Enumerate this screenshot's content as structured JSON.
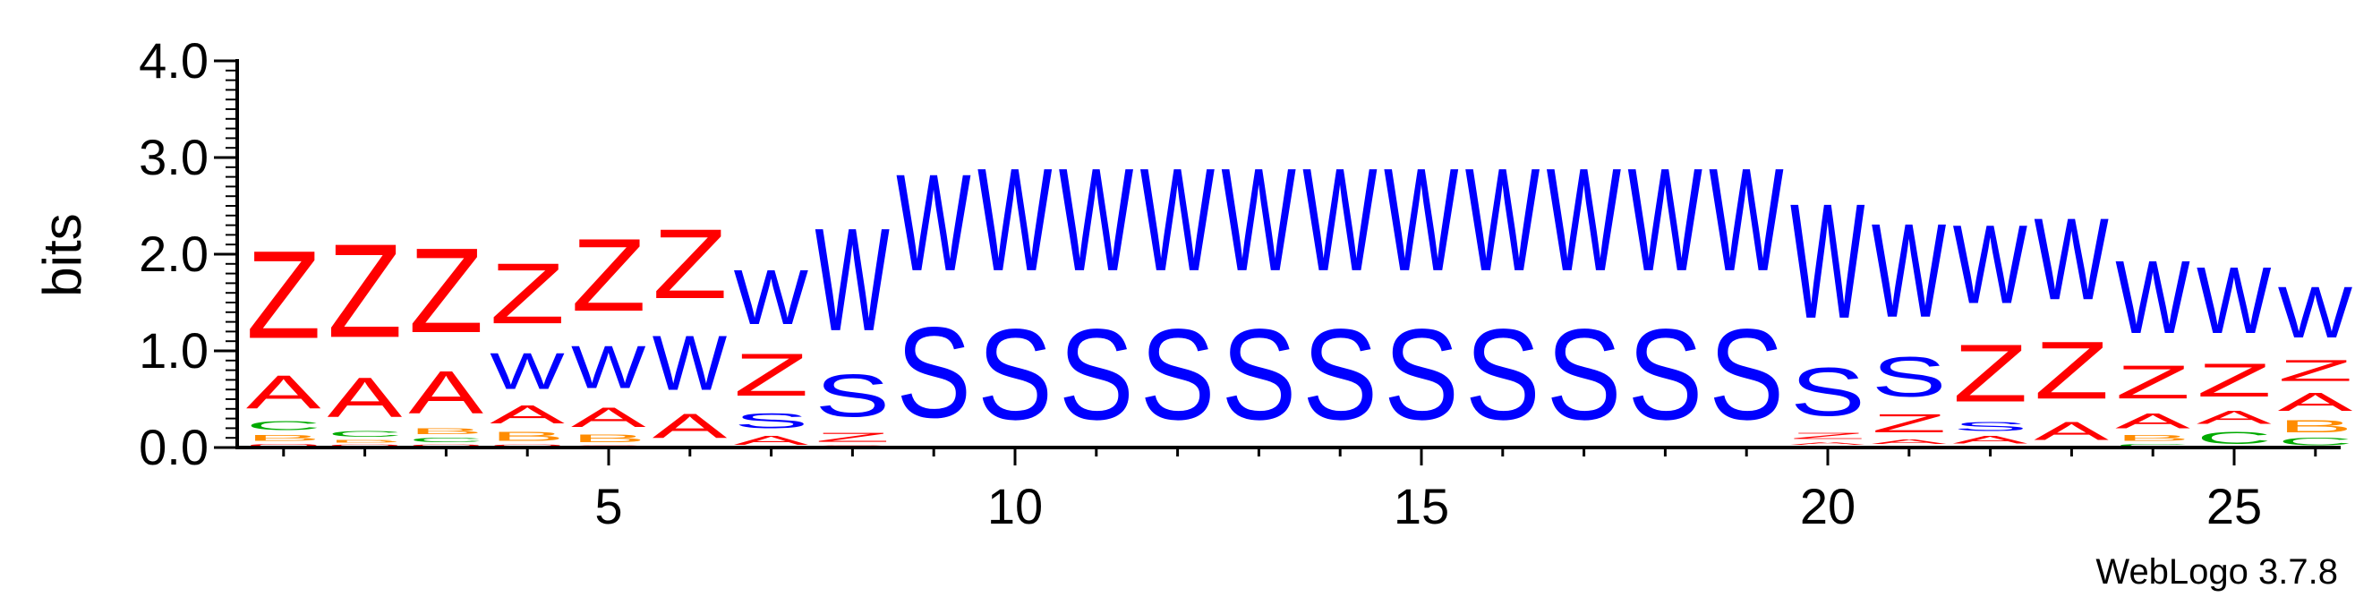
{
  "chart_data": {
    "type": "sequence-logo",
    "ylabel": "bits",
    "ylim": [
      0,
      4.0
    ],
    "y_ticks": [
      "0.0",
      "1.0",
      "2.0",
      "3.0",
      "4.0"
    ],
    "x_ticks": [
      5,
      10,
      15,
      20,
      25
    ],
    "x_range": [
      1,
      26
    ],
    "credit": "WebLogo 3.7.8",
    "colors": {
      "Z": "#ff0000",
      "A": "#ff0000",
      "W": "#0000ff",
      "S": "#0000ff",
      "C": "#00aa00",
      "B": "#ff8c00",
      "O": "#ff0000"
    },
    "positions": [
      {
        "pos": 1,
        "stack": [
          [
            "O",
            0.05
          ],
          [
            "B",
            0.1
          ],
          [
            "C",
            0.15
          ],
          [
            "A",
            0.55
          ],
          [
            "Z",
            1.45
          ]
        ]
      },
      {
        "pos": 2,
        "stack": [
          [
            "O",
            0.04
          ],
          [
            "B",
            0.05
          ],
          [
            "C",
            0.1
          ],
          [
            "A",
            0.65
          ],
          [
            "Z",
            1.55
          ]
        ]
      },
      {
        "pos": 3,
        "stack": [
          [
            "O",
            0.04
          ],
          [
            "C",
            0.08
          ],
          [
            "B",
            0.1
          ],
          [
            "A",
            0.7
          ],
          [
            "Z",
            1.4
          ]
        ]
      },
      {
        "pos": 4,
        "stack": [
          [
            "O",
            0.04
          ],
          [
            "B",
            0.15
          ],
          [
            "A",
            0.3
          ],
          [
            "W",
            0.6
          ],
          [
            "Z",
            1.0
          ]
        ]
      },
      {
        "pos": 5,
        "stack": [
          [
            "O",
            0.03
          ],
          [
            "B",
            0.12
          ],
          [
            "A",
            0.33
          ],
          [
            "W",
            0.7
          ],
          [
            "Z",
            1.2
          ]
        ]
      },
      {
        "pos": 6,
        "stack": [
          [
            "O",
            0.02
          ],
          [
            "A",
            0.4
          ],
          [
            "W",
            0.9
          ],
          [
            "Z",
            1.15
          ]
        ]
      },
      {
        "pos": 7,
        "stack": [
          [
            "A",
            0.15
          ],
          [
            "S",
            0.25
          ],
          [
            "Z",
            0.7
          ],
          [
            "W",
            0.9
          ]
        ]
      },
      {
        "pos": 8,
        "stack": [
          [
            "O",
            0.03
          ],
          [
            "Z",
            0.15
          ],
          [
            "S",
            0.7
          ],
          [
            "W",
            1.7
          ]
        ]
      },
      {
        "pos": 9,
        "stack": [
          [
            "O",
            0.02
          ],
          [
            "S",
            1.5
          ],
          [
            "W",
            1.6
          ]
        ]
      },
      {
        "pos": 10,
        "stack": [
          [
            "S",
            1.5
          ],
          [
            "W",
            1.7
          ]
        ]
      },
      {
        "pos": 11,
        "stack": [
          [
            "S",
            1.5
          ],
          [
            "W",
            1.7
          ]
        ]
      },
      {
        "pos": 12,
        "stack": [
          [
            "S",
            1.5
          ],
          [
            "W",
            1.7
          ]
        ]
      },
      {
        "pos": 13,
        "stack": [
          [
            "S",
            1.5
          ],
          [
            "W",
            1.7
          ]
        ]
      },
      {
        "pos": 14,
        "stack": [
          [
            "S",
            1.5
          ],
          [
            "W",
            1.7
          ]
        ]
      },
      {
        "pos": 15,
        "stack": [
          [
            "S",
            1.5
          ],
          [
            "W",
            1.7
          ]
        ]
      },
      {
        "pos": 16,
        "stack": [
          [
            "S",
            1.5
          ],
          [
            "W",
            1.7
          ]
        ]
      },
      {
        "pos": 17,
        "stack": [
          [
            "S",
            1.5
          ],
          [
            "W",
            1.7
          ]
        ]
      },
      {
        "pos": 18,
        "stack": [
          [
            "S",
            1.5
          ],
          [
            "W",
            1.7
          ]
        ]
      },
      {
        "pos": 19,
        "stack": [
          [
            "S",
            1.5
          ],
          [
            "W",
            1.7
          ]
        ]
      },
      {
        "pos": 20,
        "stack": [
          [
            "O",
            0.02
          ],
          [
            "A",
            0.05
          ],
          [
            "Z",
            0.1
          ],
          [
            "S",
            0.8
          ],
          [
            "W",
            1.9
          ]
        ]
      },
      {
        "pos": 21,
        "stack": [
          [
            "O",
            0.02
          ],
          [
            "A",
            0.08
          ],
          [
            "Z",
            0.3
          ],
          [
            "S",
            0.65
          ],
          [
            "W",
            1.55
          ]
        ]
      },
      {
        "pos": 22,
        "stack": [
          [
            "O",
            0.02
          ],
          [
            "A",
            0.12
          ],
          [
            "S",
            0.15
          ],
          [
            "Z",
            0.95
          ],
          [
            "W",
            1.3
          ]
        ]
      },
      {
        "pos": 23,
        "stack": [
          [
            "O",
            0.02
          ],
          [
            "A",
            0.3
          ],
          [
            "Z",
            0.95
          ],
          [
            "W",
            1.35
          ]
        ]
      },
      {
        "pos": 24,
        "stack": [
          [
            "C",
            0.05
          ],
          [
            "B",
            0.1
          ],
          [
            "A",
            0.25
          ],
          [
            "Z",
            0.55
          ],
          [
            "W",
            1.2
          ]
        ]
      },
      {
        "pos": 25,
        "stack": [
          [
            "C",
            0.2
          ],
          [
            "A",
            0.22
          ],
          [
            "Z",
            0.55
          ],
          [
            "W",
            1.1
          ]
        ]
      },
      {
        "pos": 26,
        "stack": [
          [
            "C",
            0.12
          ],
          [
            "B",
            0.2
          ],
          [
            "A",
            0.3
          ],
          [
            "Z",
            0.35
          ],
          [
            "W",
            0.85
          ]
        ]
      }
    ]
  }
}
